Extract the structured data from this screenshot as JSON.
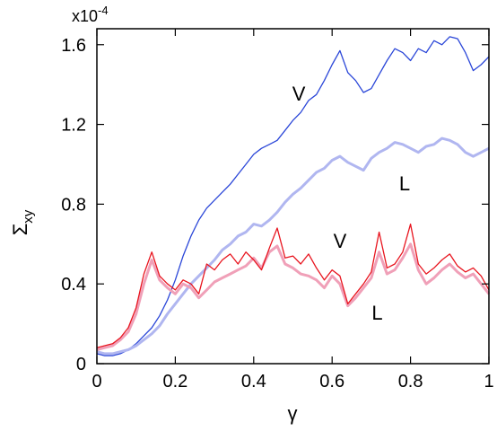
{
  "chart_data": {
    "type": "line",
    "xlabel": "γ",
    "ylabel": "Σ",
    "ylabel_subscript": "xy",
    "scale_label": "x10",
    "scale_exponent": "-4",
    "xlim": [
      0,
      1
    ],
    "ylim": [
      0,
      1.68
    ],
    "x_ticks": [
      {
        "value": 0,
        "label": "0"
      },
      {
        "value": 0.2,
        "label": "0.2"
      },
      {
        "value": 0.4,
        "label": "0.4"
      },
      {
        "value": 0.6,
        "label": "0.6"
      },
      {
        "value": 0.8,
        "label": "0.8"
      },
      {
        "value": 1,
        "label": "1"
      }
    ],
    "y_ticks": [
      {
        "value": 0,
        "label": "0"
      },
      {
        "value": 0.4,
        "label": "0.4"
      },
      {
        "value": 0.8,
        "label": "0.8"
      },
      {
        "value": 1.2,
        "label": "1.2"
      },
      {
        "value": 1.6,
        "label": "1.6"
      }
    ],
    "grid": false,
    "legend": "none",
    "annotations": [
      {
        "text": "V",
        "x": 0.515,
        "y": 1.32,
        "series": "blue"
      },
      {
        "text": "L",
        "x": 0.785,
        "y": 0.87,
        "series": "light blue"
      },
      {
        "text": "V",
        "x": 0.62,
        "y": 0.58,
        "series": "red"
      },
      {
        "text": "L",
        "x": 0.715,
        "y": 0.22,
        "series": "pink"
      }
    ],
    "series": [
      {
        "color": "#2a46d8",
        "width": 1.3,
        "x": [
          0,
          0.02,
          0.04,
          0.06,
          0.08,
          0.1,
          0.12,
          0.14,
          0.16,
          0.18,
          0.2,
          0.22,
          0.24,
          0.26,
          0.28,
          0.3,
          0.32,
          0.34,
          0.36,
          0.38,
          0.4,
          0.42,
          0.44,
          0.46,
          0.48,
          0.5,
          0.52,
          0.54,
          0.56,
          0.58,
          0.6,
          0.62,
          0.64,
          0.66,
          0.68,
          0.7,
          0.72,
          0.74,
          0.76,
          0.78,
          0.8,
          0.82,
          0.84,
          0.86,
          0.88,
          0.9,
          0.92,
          0.94,
          0.96,
          0.98,
          1.0
        ],
        "y": [
          0.05,
          0.04,
          0.04,
          0.05,
          0.07,
          0.1,
          0.14,
          0.18,
          0.24,
          0.32,
          0.42,
          0.54,
          0.64,
          0.72,
          0.78,
          0.82,
          0.86,
          0.9,
          0.95,
          1.0,
          1.05,
          1.08,
          1.1,
          1.12,
          1.17,
          1.22,
          1.26,
          1.32,
          1.35,
          1.42,
          1.5,
          1.57,
          1.46,
          1.42,
          1.36,
          1.38,
          1.45,
          1.52,
          1.58,
          1.56,
          1.52,
          1.58,
          1.56,
          1.62,
          1.6,
          1.64,
          1.63,
          1.56,
          1.47,
          1.5,
          1.54
        ]
      },
      {
        "color": "#b0b6f0",
        "width": 3,
        "x": [
          0,
          0.02,
          0.04,
          0.06,
          0.08,
          0.1,
          0.12,
          0.14,
          0.16,
          0.18,
          0.2,
          0.22,
          0.24,
          0.26,
          0.28,
          0.3,
          0.32,
          0.34,
          0.36,
          0.38,
          0.4,
          0.42,
          0.44,
          0.46,
          0.48,
          0.5,
          0.52,
          0.54,
          0.56,
          0.58,
          0.6,
          0.62,
          0.64,
          0.66,
          0.68,
          0.7,
          0.72,
          0.74,
          0.76,
          0.78,
          0.8,
          0.82,
          0.84,
          0.86,
          0.88,
          0.9,
          0.92,
          0.94,
          0.96,
          0.98,
          1.0
        ],
        "y": [
          0.06,
          0.05,
          0.05,
          0.06,
          0.07,
          0.09,
          0.12,
          0.15,
          0.19,
          0.25,
          0.3,
          0.35,
          0.4,
          0.44,
          0.48,
          0.52,
          0.57,
          0.6,
          0.64,
          0.66,
          0.7,
          0.69,
          0.72,
          0.76,
          0.81,
          0.85,
          0.88,
          0.92,
          0.96,
          0.98,
          1.02,
          1.04,
          1.01,
          0.99,
          0.97,
          1.03,
          1.06,
          1.08,
          1.11,
          1.1,
          1.08,
          1.06,
          1.09,
          1.1,
          1.13,
          1.12,
          1.1,
          1.06,
          1.04,
          1.06,
          1.08
        ]
      },
      {
        "color": "#f0a0b8",
        "width": 3,
        "x": [
          0,
          0.02,
          0.04,
          0.06,
          0.08,
          0.1,
          0.12,
          0.14,
          0.16,
          0.18,
          0.2,
          0.22,
          0.24,
          0.26,
          0.28,
          0.3,
          0.32,
          0.34,
          0.36,
          0.38,
          0.4,
          0.42,
          0.44,
          0.46,
          0.48,
          0.5,
          0.52,
          0.54,
          0.56,
          0.58,
          0.6,
          0.62,
          0.64,
          0.66,
          0.68,
          0.7,
          0.72,
          0.74,
          0.76,
          0.78,
          0.8,
          0.82,
          0.84,
          0.86,
          0.88,
          0.9,
          0.92,
          0.94,
          0.96,
          0.98,
          1.0
        ],
        "y": [
          0.07,
          0.08,
          0.09,
          0.12,
          0.16,
          0.25,
          0.4,
          0.52,
          0.42,
          0.38,
          0.35,
          0.4,
          0.38,
          0.33,
          0.37,
          0.41,
          0.43,
          0.45,
          0.47,
          0.49,
          0.53,
          0.48,
          0.56,
          0.59,
          0.5,
          0.48,
          0.45,
          0.44,
          0.42,
          0.38,
          0.44,
          0.4,
          0.29,
          0.33,
          0.38,
          0.43,
          0.56,
          0.45,
          0.47,
          0.53,
          0.6,
          0.47,
          0.4,
          0.43,
          0.47,
          0.5,
          0.46,
          0.43,
          0.45,
          0.4,
          0.35
        ]
      },
      {
        "color": "#e8141e",
        "width": 1.3,
        "x": [
          0,
          0.02,
          0.04,
          0.06,
          0.08,
          0.1,
          0.12,
          0.14,
          0.16,
          0.18,
          0.2,
          0.22,
          0.24,
          0.26,
          0.28,
          0.3,
          0.32,
          0.34,
          0.36,
          0.38,
          0.4,
          0.42,
          0.44,
          0.46,
          0.48,
          0.5,
          0.52,
          0.54,
          0.56,
          0.58,
          0.6,
          0.62,
          0.64,
          0.66,
          0.68,
          0.7,
          0.72,
          0.74,
          0.76,
          0.78,
          0.8,
          0.82,
          0.84,
          0.86,
          0.88,
          0.9,
          0.92,
          0.94,
          0.96,
          0.98,
          1.0
        ],
        "y": [
          0.08,
          0.09,
          0.1,
          0.13,
          0.18,
          0.28,
          0.45,
          0.56,
          0.44,
          0.4,
          0.37,
          0.42,
          0.4,
          0.35,
          0.5,
          0.47,
          0.52,
          0.55,
          0.5,
          0.56,
          0.52,
          0.47,
          0.58,
          0.68,
          0.53,
          0.54,
          0.5,
          0.55,
          0.48,
          0.42,
          0.47,
          0.44,
          0.3,
          0.35,
          0.4,
          0.46,
          0.66,
          0.48,
          0.5,
          0.56,
          0.7,
          0.5,
          0.45,
          0.48,
          0.52,
          0.55,
          0.49,
          0.46,
          0.48,
          0.44,
          0.37
        ]
      }
    ]
  }
}
